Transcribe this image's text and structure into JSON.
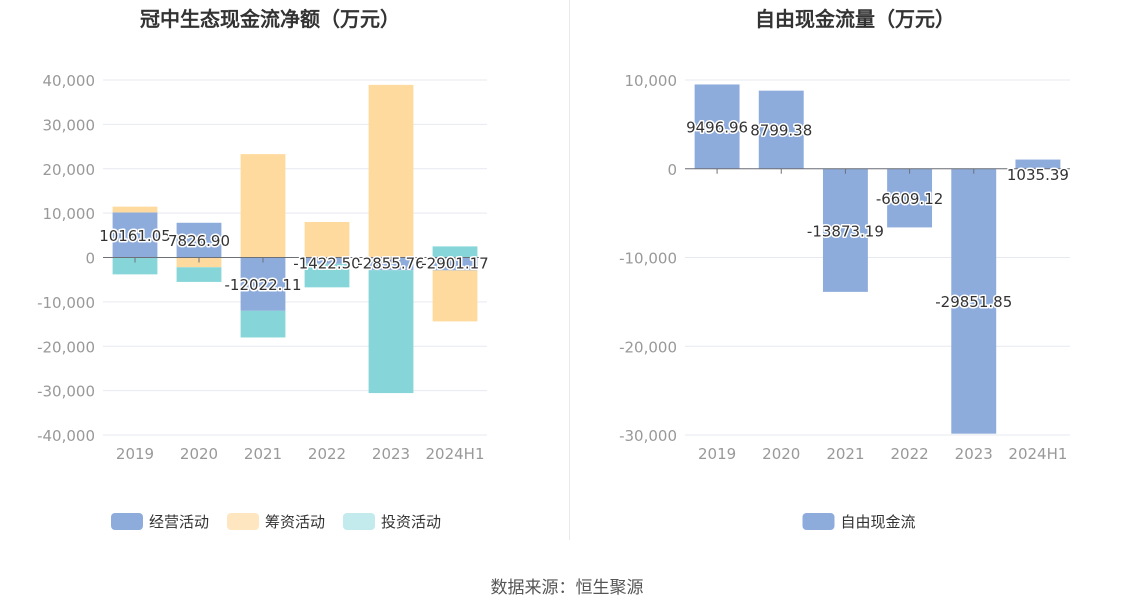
{
  "source": "数据来源：恒生聚源",
  "chart_data": [
    {
      "type": "bar",
      "stacked": true,
      "title": "冠中生态现金流净额（万元）",
      "categories": [
        "2019",
        "2020",
        "2021",
        "2022",
        "2023",
        "2024H1"
      ],
      "ylim": [
        -40000,
        40000
      ],
      "yticks": [
        40000,
        30000,
        20000,
        10000,
        0,
        -10000,
        -20000,
        -30000,
        -40000
      ],
      "ytick_labels": [
        "40,000",
        "30,000",
        "20,000",
        "10,000",
        "0",
        "-10,000",
        "-20,000",
        "-30,000",
        "-40,000"
      ],
      "legend_position": "bottom",
      "series": [
        {
          "name": "经营活动",
          "color": "#8eacdb",
          "legend_color": "#8eacdb",
          "values": [
            10161.05,
            7826.9,
            -12022.11,
            -1422.5,
            -2855.76,
            -2901.17
          ]
        },
        {
          "name": "筹资活动",
          "color": "#ffda9e",
          "legend_color": "#fee6c0",
          "values": [
            1300,
            -2200,
            23300,
            8000,
            38900,
            -11500
          ]
        },
        {
          "name": "投资活动",
          "color": "#86d6d9",
          "legend_color": "#c3ebed",
          "values": [
            -3800,
            -3300,
            -6000,
            -5300,
            -27700,
            2500
          ]
        }
      ],
      "data_labels": [
        "10161.05",
        "7826.90",
        "-12022.11",
        "-1422.50",
        "-2855.76",
        "-2901.17"
      ]
    },
    {
      "type": "bar",
      "title": "自由现金流量（万元）",
      "categories": [
        "2019",
        "2020",
        "2021",
        "2022",
        "2023",
        "2024H1"
      ],
      "ylim": [
        -30000,
        10000
      ],
      "yticks": [
        10000,
        0,
        -10000,
        -20000,
        -30000
      ],
      "ytick_labels": [
        "10,000",
        "0",
        "-10,000",
        "-20,000",
        "-30,000"
      ],
      "legend_position": "bottom",
      "series": [
        {
          "name": "自由现金流",
          "color": "#8eacdb",
          "legend_color": "#8eacdb",
          "values": [
            9496.96,
            8799.38,
            -13873.19,
            -6609.12,
            -29851.85,
            1035.39
          ]
        }
      ],
      "data_labels": [
        "9496.96",
        "8799.38",
        "-13873.19",
        "-6609.12",
        "-29851.85",
        "1035.39"
      ]
    }
  ]
}
